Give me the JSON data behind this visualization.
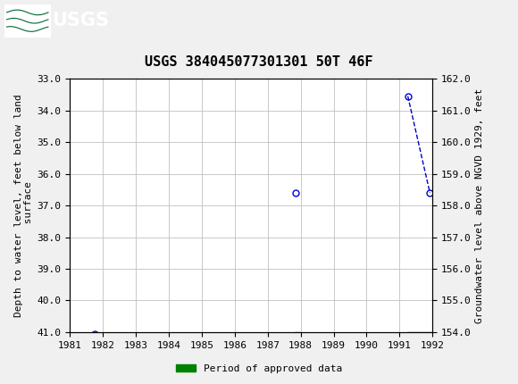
{
  "title": "USGS 384045077301301 50T 46F",
  "ylabel_left": "Depth to water level, feet below land\n surface",
  "ylabel_right": "Groundwater level above NGVD 1929, feet",
  "ylim_left": [
    33.0,
    41.0
  ],
  "ylim_right": [
    162.0,
    154.0
  ],
  "xlim": [
    1981,
    1992
  ],
  "yticks_left": [
    33.0,
    34.0,
    35.0,
    36.0,
    37.0,
    38.0,
    39.0,
    40.0,
    41.0
  ],
  "yticks_right": [
    162.0,
    161.0,
    160.0,
    159.0,
    158.0,
    157.0,
    156.0,
    155.0,
    154.0
  ],
  "xticks": [
    1981,
    1982,
    1983,
    1984,
    1985,
    1986,
    1987,
    1988,
    1989,
    1990,
    1991,
    1992
  ],
  "data_x": [
    1981.75,
    1987.85,
    1991.25,
    1991.92
  ],
  "data_y": [
    41.05,
    36.6,
    33.55,
    36.6
  ],
  "line_segment_indices": [
    2,
    3
  ],
  "approved_bars": [
    {
      "x_start": 1987.82,
      "x_end": 1987.97,
      "y_center": 41.07
    },
    {
      "x_start": 1991.22,
      "x_end": 1992.0,
      "y_center": 41.07
    }
  ],
  "approved_bar_height": 0.12,
  "point_color": "#0000cc",
  "line_color": "#0000cc",
  "approved_color": "#008000",
  "background_color": "#f0f0f0",
  "plot_bg_color": "#ffffff",
  "grid_color": "#c0c0c0",
  "header_bg_color": "#006633",
  "header_text_color": "#ffffff",
  "title_fontsize": 11,
  "axis_label_fontsize": 8,
  "tick_fontsize": 8,
  "legend_label": "Period of approved data",
  "legend_fontsize": 8
}
